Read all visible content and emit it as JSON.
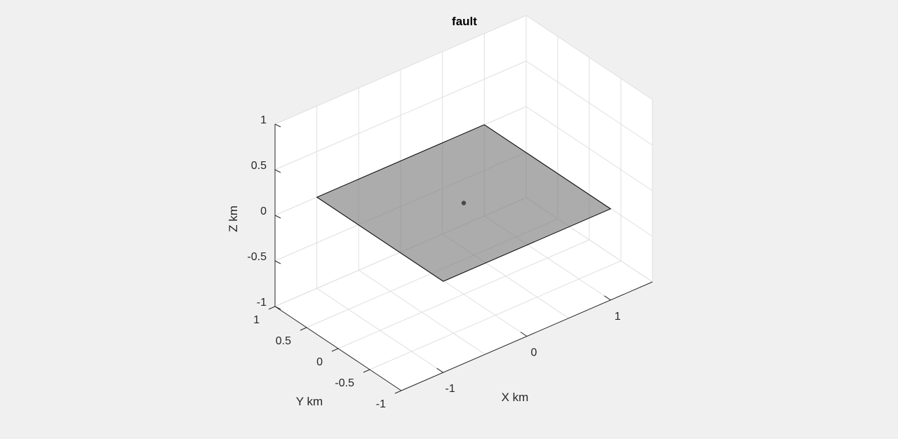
{
  "chart_data": {
    "type": "surface3d",
    "title": "fault",
    "xlabel": "X km",
    "ylabel": "Y km",
    "zlabel": "Z km",
    "xlim": [
      -1.5,
      1.5
    ],
    "ylim": [
      -1,
      1
    ],
    "zlim": [
      -1,
      1
    ],
    "xticks": [
      -1,
      0,
      1
    ],
    "xtick_labels": [
      "-1",
      "0",
      "1"
    ],
    "yticks": [
      -1,
      -0.5,
      0,
      0.5,
      1
    ],
    "ytick_labels": [
      "-1",
      "-0.5",
      "0",
      "0.5",
      "1"
    ],
    "zticks": [
      -1,
      -0.5,
      0,
      0.5,
      1
    ],
    "ztick_labels": [
      "-1",
      "-0.5",
      "0",
      "0.5",
      "1"
    ],
    "grid": true,
    "box": "back planes",
    "surface": {
      "name": "fault plane",
      "corners": [
        [
          -1.0,
          -1.0,
          0
        ],
        [
          1.0,
          -1.0,
          0
        ],
        [
          1.0,
          1.0,
          0
        ],
        [
          -1.0,
          1.0,
          0
        ]
      ],
      "face_color": "#808080",
      "face_alpha": 0.65,
      "edge_color": "#000000"
    },
    "points": [
      {
        "name": "fault center",
        "x": 0,
        "y": 0,
        "z": 0,
        "color": "#4a4a4a"
      }
    ],
    "colors": {
      "background": "#f0f0f0",
      "axes_background": "#ffffff",
      "grid": "#dfdfdf",
      "axis": "#262626"
    }
  }
}
